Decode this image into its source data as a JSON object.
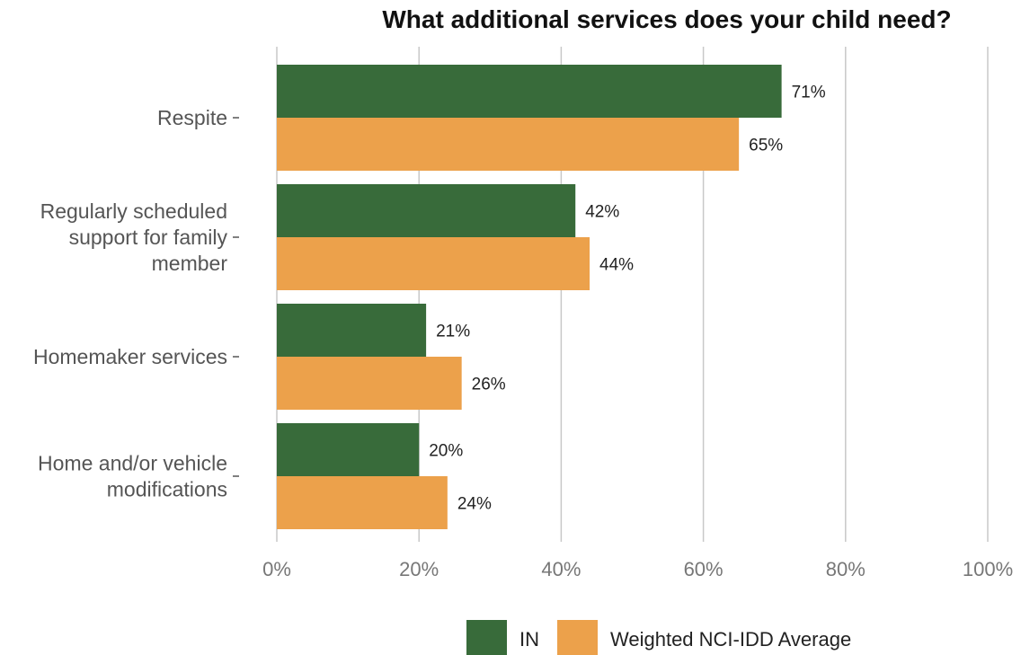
{
  "chart_data": {
    "type": "bar",
    "orientation": "horizontal",
    "title": "What additional services does your child need?",
    "categories": [
      [
        "Respite"
      ],
      [
        "Regularly scheduled",
        "support for family",
        "member"
      ],
      [
        "Homemaker services"
      ],
      [
        "Home and/or vehicle",
        "modifications"
      ]
    ],
    "series": [
      {
        "name": "IN",
        "color": "#386b3a",
        "values": [
          71,
          42,
          21,
          20
        ],
        "labels": [
          "71%",
          "42%",
          "21%",
          "20%"
        ]
      },
      {
        "name": "Weighted NCI-IDD Average",
        "color": "#eca14b",
        "values": [
          65,
          44,
          26,
          24
        ],
        "labels": [
          "65%",
          "44%",
          "26%",
          "24%"
        ]
      }
    ],
    "xlim": [
      0,
      100
    ],
    "xticks": [
      0,
      20,
      40,
      60,
      80,
      100
    ],
    "xtick_labels": [
      "0%",
      "20%",
      "40%",
      "60%",
      "80%",
      "100%"
    ],
    "grid": "vertical",
    "legend_position": "bottom"
  }
}
